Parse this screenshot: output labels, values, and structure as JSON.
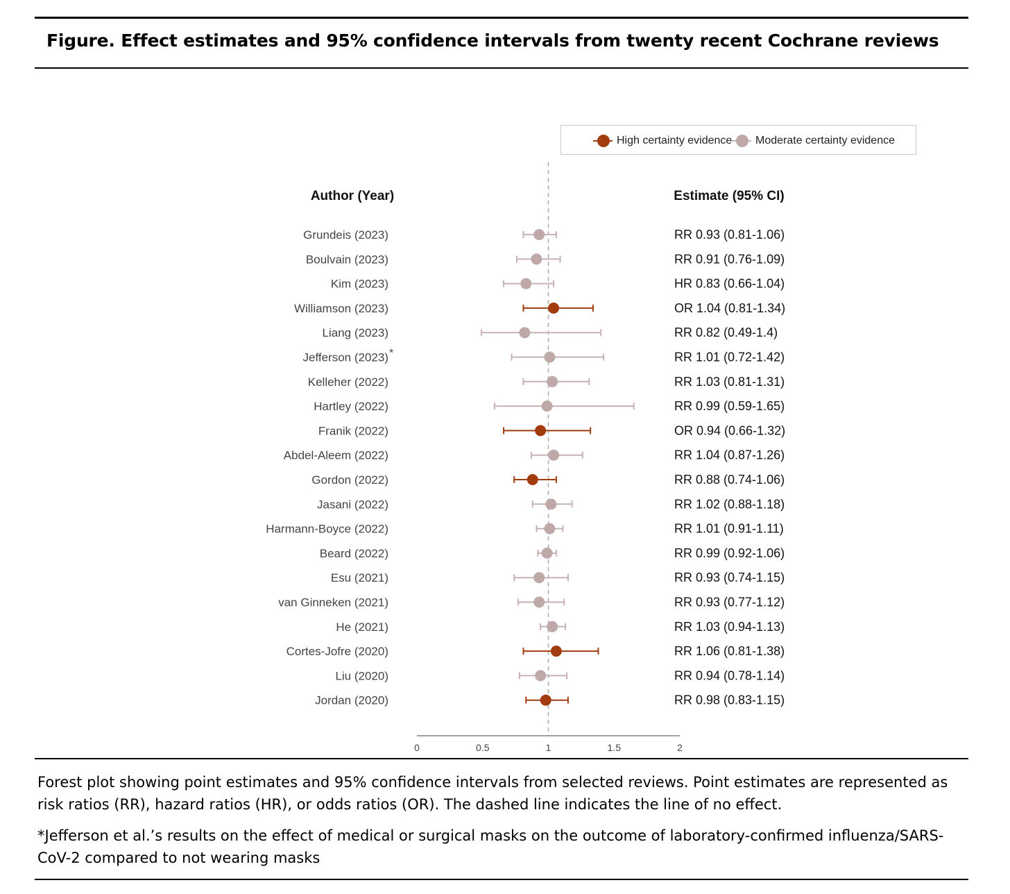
{
  "figure": {
    "title": "Figure. Effect estimates and 95% confidence intervals from twenty recent Cochrane reviews",
    "caption": "Forest plot showing point estimates and 95% confidence intervals from selected reviews. Point estimates are represented as risk ratios (RR), hazard ratios (HR), or odds ratios (OR). The dashed line indicates the line of no effect.",
    "footnote": "*Jefferson et al.’s results on the effect of medical or surgical masks on the outcome of laboratory-confirmed influenza/SARS-CoV-2 compared to not wearing masks"
  },
  "legend": {
    "high_label": "High certainty evidence",
    "moderate_label": "Moderate certainty evidence"
  },
  "colors": {
    "high": "#a23c0f",
    "moderate": "#bfa8a8",
    "moderate_line": "#c7b2b2",
    "labels": "#444444",
    "reference_line": "#aaaaaa"
  },
  "chart_data": {
    "type": "forest",
    "column_headers": {
      "author": "Author (Year)",
      "estimate": "Estimate (95% CI)"
    },
    "x_ticks": [
      "0",
      "0.5",
      "1",
      "1.5",
      "2"
    ],
    "xlim": [
      0,
      2
    ],
    "reference_value": 1,
    "rows": [
      {
        "study": "Grundeis (2023)",
        "marker": "",
        "certainty": "moderate",
        "est": 0.93,
        "lo": 0.81,
        "hi": 1.06,
        "label": "RR 0.93 (0.81-1.06)"
      },
      {
        "study": "Boulvain (2023)",
        "marker": "",
        "certainty": "moderate",
        "est": 0.91,
        "lo": 0.76,
        "hi": 1.09,
        "label": "RR 0.91 (0.76-1.09)"
      },
      {
        "study": "Kim (2023)",
        "marker": "",
        "certainty": "moderate",
        "est": 0.83,
        "lo": 0.66,
        "hi": 1.04,
        "label": "HR 0.83 (0.66-1.04)"
      },
      {
        "study": "Williamson (2023)",
        "marker": "",
        "certainty": "high",
        "est": 1.04,
        "lo": 0.81,
        "hi": 1.34,
        "label": "OR 1.04 (0.81-1.34)"
      },
      {
        "study": "Liang (2023)",
        "marker": "",
        "certainty": "moderate",
        "est": 0.82,
        "lo": 0.49,
        "hi": 1.4,
        "label": "RR 0.82 (0.49-1.4)"
      },
      {
        "study": "Jefferson (2023)",
        "marker": "*",
        "certainty": "moderate",
        "est": 1.01,
        "lo": 0.72,
        "hi": 1.42,
        "label": "RR 1.01 (0.72-1.42)"
      },
      {
        "study": "Kelleher (2022)",
        "marker": "",
        "certainty": "moderate",
        "est": 1.03,
        "lo": 0.81,
        "hi": 1.31,
        "label": "RR 1.03 (0.81-1.31)"
      },
      {
        "study": "Hartley (2022)",
        "marker": "",
        "certainty": "moderate",
        "est": 0.99,
        "lo": 0.59,
        "hi": 1.65,
        "label": "RR 0.99 (0.59-1.65)"
      },
      {
        "study": "Franik (2022)",
        "marker": "",
        "certainty": "high",
        "est": 0.94,
        "lo": 0.66,
        "hi": 1.32,
        "label": "OR 0.94 (0.66-1.32)"
      },
      {
        "study": "Abdel-Aleem (2022)",
        "marker": "",
        "certainty": "moderate",
        "est": 1.04,
        "lo": 0.87,
        "hi": 1.26,
        "label": "RR 1.04 (0.87-1.26)"
      },
      {
        "study": "Gordon (2022)",
        "marker": "",
        "certainty": "high",
        "est": 0.88,
        "lo": 0.74,
        "hi": 1.06,
        "label": "RR 0.88 (0.74-1.06)"
      },
      {
        "study": "Jasani (2022)",
        "marker": "",
        "certainty": "moderate",
        "est": 1.02,
        "lo": 0.88,
        "hi": 1.18,
        "label": "RR 1.02 (0.88-1.18)"
      },
      {
        "study": "Harmann-Boyce (2022)",
        "marker": "",
        "certainty": "moderate",
        "est": 1.01,
        "lo": 0.91,
        "hi": 1.11,
        "label": "RR 1.01 (0.91-1.11)"
      },
      {
        "study": "Beard (2022)",
        "marker": "",
        "certainty": "moderate",
        "est": 0.99,
        "lo": 0.92,
        "hi": 1.06,
        "label": "RR 0.99 (0.92-1.06)"
      },
      {
        "study": "Esu (2021)",
        "marker": "",
        "certainty": "moderate",
        "est": 0.93,
        "lo": 0.74,
        "hi": 1.15,
        "label": "RR 0.93 (0.74-1.15)"
      },
      {
        "study": "van Ginneken (2021)",
        "marker": "",
        "certainty": "moderate",
        "est": 0.93,
        "lo": 0.77,
        "hi": 1.12,
        "label": "RR 0.93 (0.77-1.12)"
      },
      {
        "study": "He (2021)",
        "marker": "",
        "certainty": "moderate",
        "est": 1.03,
        "lo": 0.94,
        "hi": 1.13,
        "label": "RR 1.03 (0.94-1.13)"
      },
      {
        "study": "Cortes-Jofre (2020)",
        "marker": "",
        "certainty": "high",
        "est": 1.06,
        "lo": 0.81,
        "hi": 1.38,
        "label": "RR 1.06 (0.81-1.38)"
      },
      {
        "study": "Liu (2020)",
        "marker": "",
        "certainty": "moderate",
        "est": 0.94,
        "lo": 0.78,
        "hi": 1.14,
        "label": "RR 0.94 (0.78-1.14)"
      },
      {
        "study": "Jordan (2020)",
        "marker": "",
        "certainty": "high",
        "est": 0.98,
        "lo": 0.83,
        "hi": 1.15,
        "label": "RR 0.98 (0.83-1.15)"
      }
    ]
  }
}
